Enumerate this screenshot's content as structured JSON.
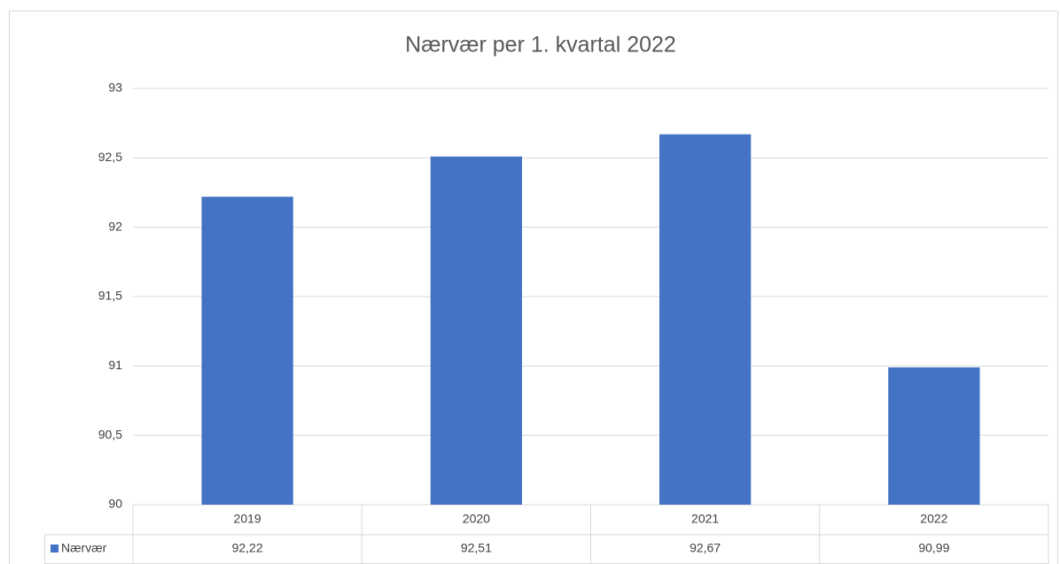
{
  "chart_data": {
    "type": "bar",
    "title": "Nærvær per 1. kvartal 2022",
    "categories": [
      "2019",
      "2020",
      "2021",
      "2022"
    ],
    "series": [
      {
        "name": "Nærvær",
        "color": "#4472c4",
        "values": [
          92.22,
          92.51,
          92.67,
          90.99
        ],
        "value_labels": [
          "92,22",
          "92,51",
          "92,67",
          "90,99"
        ]
      }
    ],
    "ylim": [
      90,
      93
    ],
    "yticks": [
      90,
      {
        "value": 90.5,
        "label": "90,5"
      },
      91,
      {
        "value": 91.5,
        "label": "91,5"
      },
      92,
      {
        "value": 92.5,
        "label": "92,5"
      },
      93
    ],
    "grid": true
  }
}
